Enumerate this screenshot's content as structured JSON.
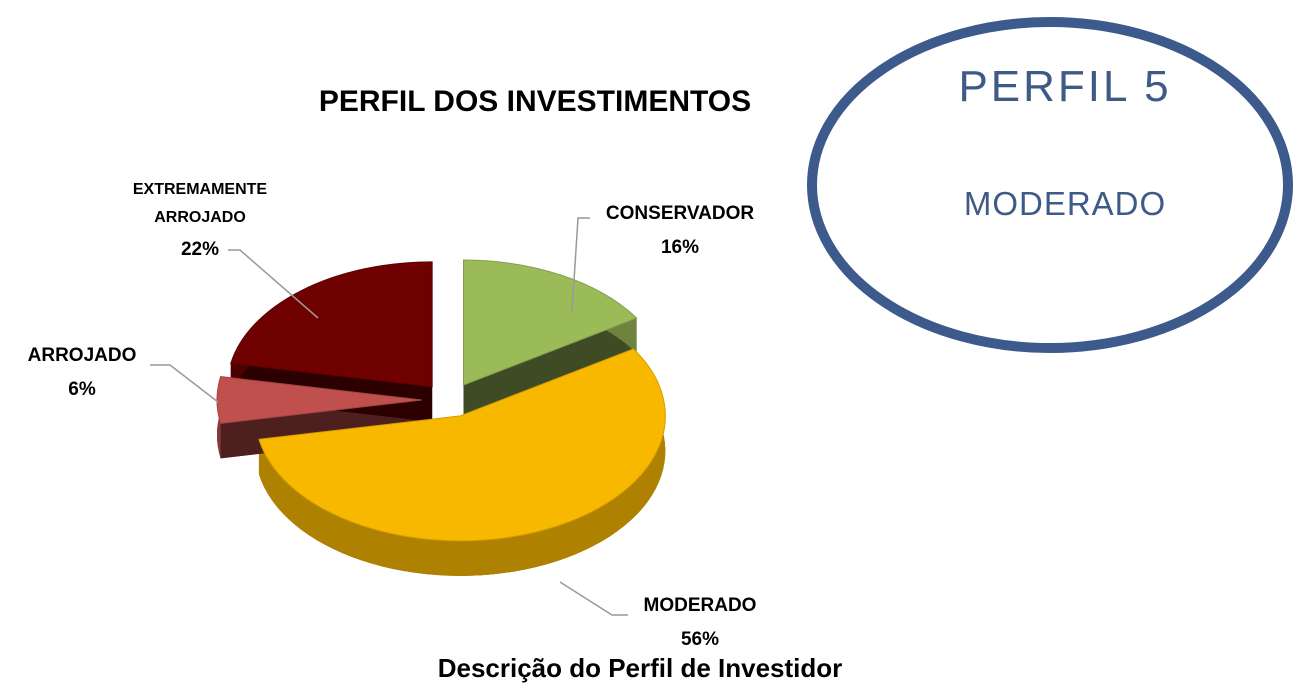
{
  "chart_data": {
    "type": "pie",
    "title": "PERFIL DOS INVESTIMENTOS",
    "categories": [
      "CONSERVADOR",
      "MODERADO",
      "ARROJADO",
      "EXTREMAMENTE ARROJADO"
    ],
    "values": [
      16,
      56,
      6,
      22
    ],
    "value_labels": [
      "16%",
      "56%",
      "6%",
      "22%"
    ],
    "colors": [
      "#9bbb59",
      "#f9b800",
      "#c0504d",
      "#6e0000"
    ]
  },
  "badge": {
    "title": "PERFIL 5",
    "subtitle": "MODERADO"
  },
  "caption": "Descrição do Perfil de Investidor"
}
